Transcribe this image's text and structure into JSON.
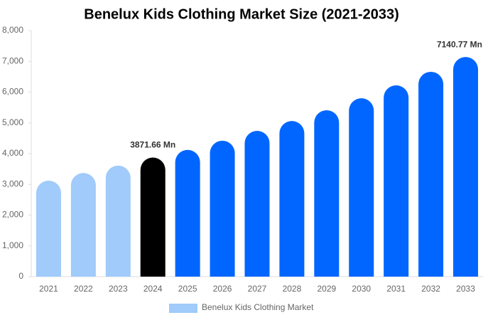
{
  "chart_data": {
    "type": "bar",
    "title": "Benelux Kids Clothing Market Size (2021-2033)",
    "categories": [
      "2021",
      "2022",
      "2023",
      "2024",
      "2025",
      "2026",
      "2027",
      "2028",
      "2029",
      "2030",
      "2031",
      "2032",
      "2033"
    ],
    "series": [
      {
        "name": "Benelux Kids Clothing Market",
        "color": "#a0cbfa",
        "values": [
          3120,
          3370,
          3610,
          3871.66,
          4120,
          4420,
          4740,
          5060,
          5410,
          5800,
          6220,
          6660,
          7140.77
        ],
        "value_labels": [
          null,
          null,
          null,
          "3871.66 Mn",
          null,
          null,
          null,
          null,
          null,
          null,
          null,
          null,
          "7140.77 Mn"
        ],
        "bar_colors": [
          "#a0cbfa",
          "#a0cbfa",
          "#a0cbfa",
          "#000000",
          "#0066ff",
          "#0066ff",
          "#0066ff",
          "#0066ff",
          "#0066ff",
          "#0066ff",
          "#0066ff",
          "#0066ff",
          "#0066ff"
        ]
      }
    ],
    "ylim": [
      0,
      8000
    ],
    "yticks": [
      0,
      {
        "value": 1000,
        "label": "1,000"
      },
      {
        "value": 2000,
        "label": "2,000"
      },
      {
        "value": 3000,
        "label": "3,000"
      },
      {
        "value": 4000,
        "label": "4,000"
      },
      {
        "value": 5000,
        "label": "5,000"
      },
      {
        "value": 6000,
        "label": "6,000"
      },
      {
        "value": 7000,
        "label": "7,000"
      },
      {
        "value": 8000,
        "label": "8,000"
      }
    ],
    "grid": false
  }
}
